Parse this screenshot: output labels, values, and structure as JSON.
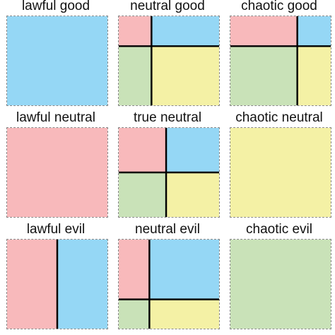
{
  "colors": {
    "pink": "#f8b9bb",
    "blue": "#95d7f5",
    "green": "#c9e2b8",
    "yellow": "#f4f1a5",
    "line": "#000000"
  },
  "chart": {
    "cells": [
      {
        "label": "lawful good"
      },
      {
        "label": "neutral good"
      },
      {
        "label": "chaotic good"
      },
      {
        "label": "lawful neutral"
      },
      {
        "label": "true neutral"
      },
      {
        "label": "chaotic neutral"
      },
      {
        "label": "lawful evil"
      },
      {
        "label": "neutral evil"
      },
      {
        "label": "chaotic evil"
      }
    ]
  }
}
